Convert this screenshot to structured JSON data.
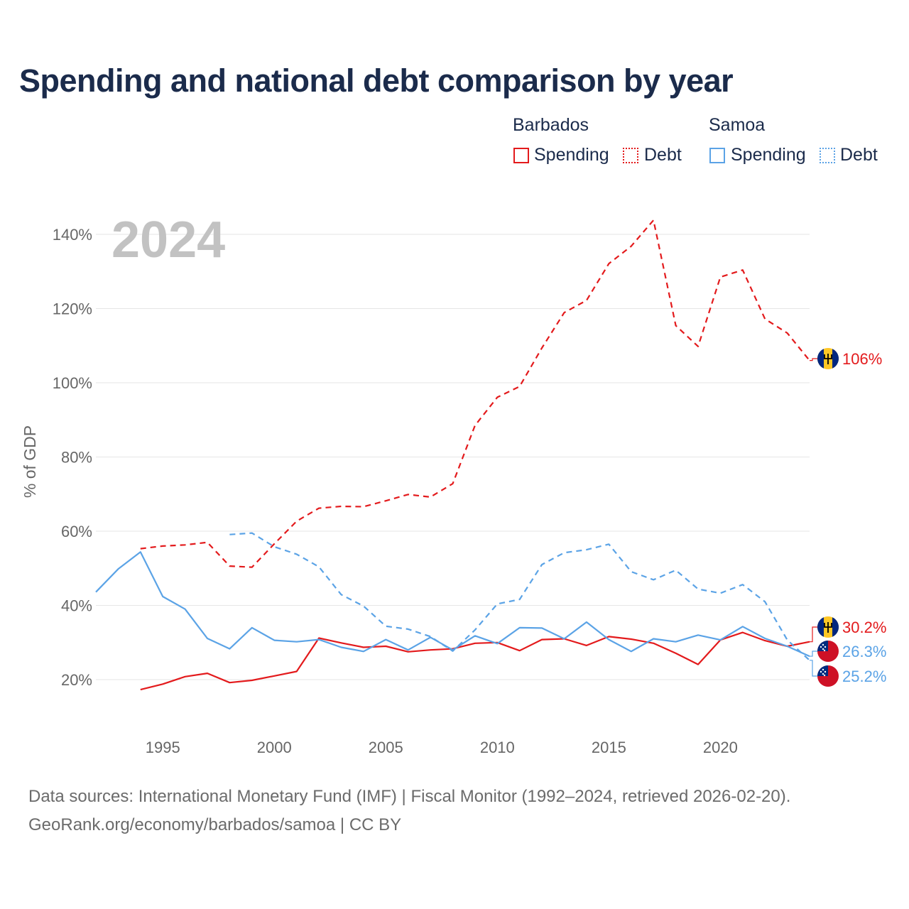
{
  "title": "Spending and national debt comparison by year",
  "legend": {
    "groups": [
      {
        "name": "Barbados",
        "color": "#e31a1c",
        "items": [
          "Spending",
          "Debt"
        ]
      },
      {
        "name": "Samoa",
        "color": "#5ba3e6",
        "items": [
          "Spending",
          "Debt"
        ]
      }
    ]
  },
  "year_watermark": "2024",
  "source": {
    "line1": "Data sources: International Monetary Fund (IMF) | Fiscal Monitor (1992–2024, retrieved 2026-02-20).",
    "line2": "GeoRank.org/economy/barbados/samoa | CC BY"
  },
  "chart_data": {
    "type": "line",
    "title": "Spending and national debt comparison by year",
    "ylabel": "% of GDP",
    "xlabel": "",
    "xlim": [
      1992,
      2024
    ],
    "ylim": [
      15,
      145
    ],
    "x_ticks": [
      1995,
      2000,
      2005,
      2010,
      2015,
      2020
    ],
    "y_ticks": [
      20,
      40,
      60,
      80,
      100,
      120,
      140
    ],
    "y_tick_labels": [
      "20%",
      "40%",
      "60%",
      "80%",
      "100%",
      "120%",
      "140%"
    ],
    "grid": true,
    "series": [
      {
        "name": "Barbados Spending",
        "country": "Barbados",
        "measure": "Spending",
        "color": "#e31a1c",
        "dash": "solid",
        "x": [
          1994,
          1995,
          1996,
          1997,
          1998,
          1999,
          2000,
          2001,
          2002,
          2003,
          2004,
          2005,
          2006,
          2007,
          2008,
          2009,
          2010,
          2011,
          2012,
          2013,
          2014,
          2015,
          2016,
          2017,
          2018,
          2019,
          2020,
          2021,
          2022,
          2023,
          2024
        ],
        "values": [
          17.3,
          18.8,
          20.8,
          21.7,
          19.2,
          19.8,
          21.0,
          22.2,
          31.2,
          29.9,
          28.7,
          29.0,
          27.5,
          28.0,
          28.3,
          29.8,
          30.0,
          27.8,
          30.8,
          31.0,
          29.2,
          31.6,
          30.9,
          29.8,
          27.1,
          24.1,
          30.7,
          32.7,
          30.5,
          29.0,
          30.2
        ],
        "end_label": "30.2%"
      },
      {
        "name": "Barbados Debt",
        "country": "Barbados",
        "measure": "Debt",
        "color": "#e31a1c",
        "dash": "dashed",
        "x": [
          1994,
          1995,
          1996,
          1997,
          1998,
          1999,
          2000,
          2001,
          2002,
          2003,
          2004,
          2005,
          2006,
          2007,
          2008,
          2009,
          2010,
          2011,
          2012,
          2013,
          2014,
          2015,
          2016,
          2017,
          2018,
          2019,
          2020,
          2021,
          2022,
          2023,
          2024
        ],
        "values": [
          55.3,
          56.0,
          56.3,
          57.0,
          50.6,
          50.3,
          56.6,
          62.7,
          66.2,
          66.7,
          66.6,
          68.2,
          69.9,
          69.2,
          72.8,
          88.5,
          96.1,
          99.0,
          109.4,
          118.9,
          122.2,
          132.1,
          136.8,
          143.8,
          115.4,
          109.8,
          128.5,
          130.4,
          117.2,
          113.4,
          106.0
        ],
        "end_label": "106%"
      },
      {
        "name": "Samoa Spending",
        "country": "Samoa",
        "measure": "Spending",
        "color": "#5ba3e6",
        "dash": "solid",
        "x": [
          1992,
          1993,
          1994,
          1995,
          1996,
          1997,
          1998,
          1999,
          2000,
          2001,
          2002,
          2003,
          2004,
          2005,
          2006,
          2007,
          2008,
          2009,
          2010,
          2011,
          2012,
          2013,
          2014,
          2015,
          2016,
          2017,
          2018,
          2019,
          2020,
          2021,
          2022,
          2023,
          2024
        ],
        "values": [
          43.6,
          49.8,
          54.4,
          42.4,
          39.0,
          31.1,
          28.3,
          34.0,
          30.6,
          30.2,
          30.8,
          28.7,
          27.6,
          30.8,
          28.0,
          31.4,
          28.0,
          31.8,
          29.7,
          34.0,
          33.9,
          31.0,
          35.5,
          30.8,
          27.6,
          31.0,
          30.2,
          32.0,
          30.7,
          34.3,
          31.1,
          29.0,
          26.3
        ],
        "end_label": "26.3%"
      },
      {
        "name": "Samoa Debt",
        "country": "Samoa",
        "measure": "Debt",
        "color": "#5ba3e6",
        "dash": "dashed",
        "x": [
          1998,
          1999,
          2000,
          2001,
          2002,
          2003,
          2004,
          2005,
          2006,
          2007,
          2008,
          2009,
          2010,
          2011,
          2012,
          2013,
          2014,
          2015,
          2016,
          2017,
          2018,
          2019,
          2020,
          2021,
          2022,
          2023,
          2024
        ],
        "values": [
          59.1,
          59.5,
          55.8,
          53.8,
          50.4,
          42.9,
          39.8,
          34.4,
          33.6,
          31.6,
          27.7,
          33.4,
          40.4,
          41.6,
          51.0,
          54.2,
          55.0,
          56.5,
          49.1,
          46.9,
          49.5,
          44.4,
          43.3,
          45.6,
          41.0,
          30.7,
          25.2
        ],
        "end_label": "25.2%"
      }
    ]
  }
}
